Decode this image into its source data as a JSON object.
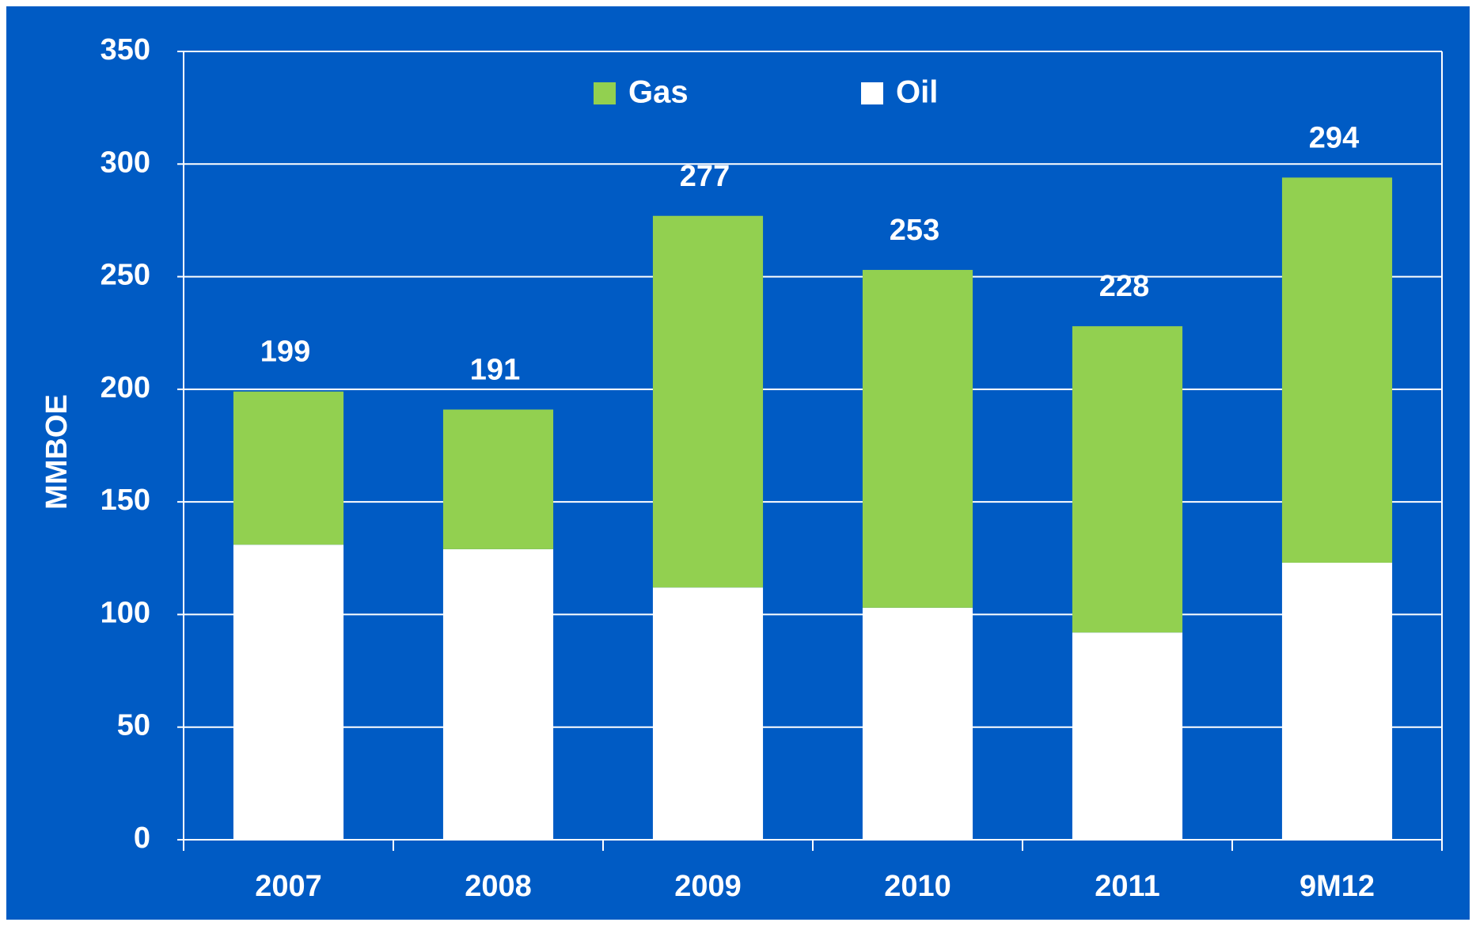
{
  "chart_data": {
    "type": "stacked_bar",
    "y_label": "MMBOE",
    "categories": [
      "2007",
      "2008",
      "2009",
      "2010",
      "2011",
      "9M12"
    ],
    "series": [
      {
        "name": "Oil",
        "color": "#ffffff",
        "values": [
          131,
          129,
          112,
          103,
          92,
          123
        ]
      },
      {
        "name": "Gas",
        "color": "#92d050",
        "values": [
          68,
          62,
          165,
          150,
          136,
          171
        ]
      }
    ],
    "totals": [
      199,
      191,
      277,
      253,
      228,
      294
    ],
    "legend_order": [
      1,
      0
    ],
    "ylim": [
      0,
      350
    ],
    "yticks": [
      0,
      50,
      100,
      150,
      200,
      250,
      300,
      350
    ],
    "grid": true
  }
}
